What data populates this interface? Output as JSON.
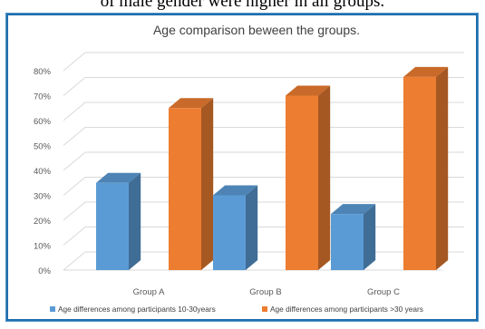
{
  "header_fragment": "of male gender were higher in all groups.",
  "chart_data": {
    "type": "bar",
    "title": "Age comparison beween the groups.",
    "categories": [
      "Group A",
      "Group B",
      "Group C"
    ],
    "series": [
      {
        "name": "Age differences among participants 10-30years",
        "values": [
          35,
          30,
          22.5
        ],
        "color": "#5b9bd5"
      },
      {
        "name": "Age differences among participants >30 years",
        "values": [
          65,
          70,
          77.5
        ],
        "color": "#ed7d31"
      }
    ],
    "y_ticks": [
      "0%",
      "10%",
      "20%",
      "30%",
      "40%",
      "50%",
      "60%",
      "70%",
      "80%"
    ],
    "ylim": [
      0,
      80
    ],
    "grid": true,
    "legend_position": "bottom",
    "style": "3d-clustered-column"
  }
}
